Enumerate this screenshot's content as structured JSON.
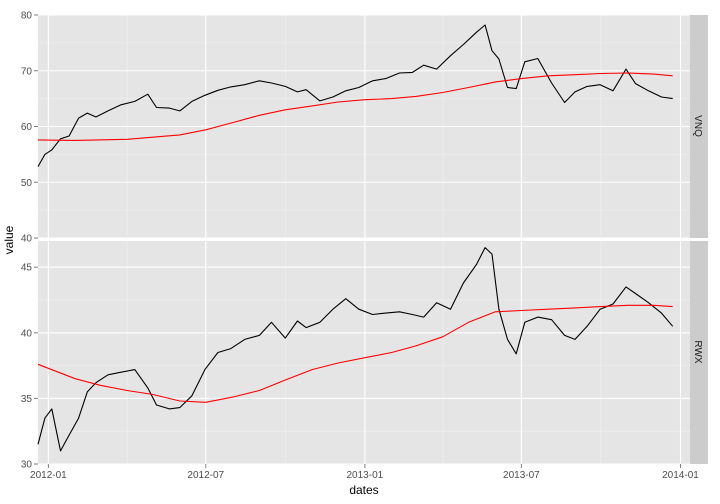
{
  "chart_data": {
    "type": "line",
    "xlabel": "dates",
    "ylabel": "value",
    "x_ticks": [
      "2012-01",
      "2012-07",
      "2013-01",
      "2013-07",
      "2014-01"
    ],
    "colors": {
      "price": "#000000",
      "moving_average": "#ff0000",
      "panel_bg": "#e5e5e5",
      "strip_bg": "#cccccc",
      "grid": "#ffffff"
    },
    "panels": [
      {
        "strip": "VNQ",
        "ylim": [
          40,
          80
        ],
        "y_ticks": [
          "40",
          "50",
          "60",
          "70",
          "80"
        ],
        "series": [
          {
            "role": "price",
            "x": [
              "2011-12-20",
              "2011-12-28",
              "2012-01-05",
              "2012-01-15",
              "2012-01-25",
              "2012-02-05",
              "2012-02-15",
              "2012-02-25",
              "2012-03-10",
              "2012-03-25",
              "2012-04-10",
              "2012-04-25",
              "2012-05-05",
              "2012-05-20",
              "2012-06-01",
              "2012-06-15",
              "2012-06-30",
              "2012-07-15",
              "2012-07-30",
              "2012-08-15",
              "2012-09-01",
              "2012-09-15",
              "2012-10-01",
              "2012-10-15",
              "2012-10-25",
              "2012-11-10",
              "2012-11-25",
              "2012-12-10",
              "2012-12-25",
              "2013-01-10",
              "2013-01-25",
              "2013-02-10",
              "2013-02-25",
              "2013-03-10",
              "2013-03-25",
              "2013-04-10",
              "2013-04-25",
              "2013-05-10",
              "2013-05-20",
              "2013-05-28",
              "2013-06-05",
              "2013-06-15",
              "2013-06-25",
              "2013-07-05",
              "2013-07-20",
              "2013-08-05",
              "2013-08-20",
              "2013-09-01",
              "2013-09-15",
              "2013-09-30",
              "2013-10-15",
              "2013-10-30",
              "2013-11-10",
              "2013-11-25",
              "2013-12-10",
              "2013-12-23"
            ],
            "values": [
              52.8,
              55,
              55.8,
              57.8,
              58.3,
              61.5,
              62.4,
              61.7,
              62.8,
              63.9,
              64.5,
              65.8,
              63.4,
              63.3,
              62.8,
              64.5,
              65.6,
              66.5,
              67.1,
              67.5,
              68.2,
              67.8,
              67.2,
              66.2,
              66.6,
              64.6,
              65.3,
              66.4,
              67,
              68.2,
              68.6,
              69.6,
              69.7,
              71,
              70.3,
              72.7,
              74.7,
              76.9,
              78.2,
              73.6,
              72.1,
              67,
              66.8,
              71.6,
              72.2,
              67.8,
              64.3,
              66.2,
              67.2,
              67.5,
              66.4,
              70.3,
              67.7,
              66.4,
              65.3,
              65
            ]
          },
          {
            "role": "moving_average",
            "x": [
              "2011-12-20",
              "2012-02-01",
              "2012-04-01",
              "2012-06-01",
              "2012-07-01",
              "2012-08-01",
              "2012-09-01",
              "2012-10-01",
              "2012-11-01",
              "2012-12-01",
              "2013-01-01",
              "2013-02-01",
              "2013-03-01",
              "2013-04-01",
              "2013-05-01",
              "2013-06-01",
              "2013-07-01",
              "2013-08-01",
              "2013-09-01",
              "2013-10-01",
              "2013-11-01",
              "2013-12-01",
              "2013-12-23"
            ],
            "values": [
              57.6,
              57.5,
              57.7,
              58.5,
              59.4,
              60.7,
              62,
              63,
              63.7,
              64.4,
              64.8,
              65,
              65.4,
              66.1,
              67,
              68,
              68.6,
              69.1,
              69.3,
              69.5,
              69.6,
              69.4,
              69.1
            ]
          }
        ]
      },
      {
        "strip": "RWX",
        "ylim": [
          30,
          47
        ],
        "y_ticks": [
          "30",
          "35",
          "40",
          "45"
        ],
        "series": [
          {
            "role": "price",
            "x": [
              "2011-12-20",
              "2011-12-28",
              "2012-01-05",
              "2012-01-15",
              "2012-01-25",
              "2012-02-05",
              "2012-02-15",
              "2012-02-25",
              "2012-03-10",
              "2012-03-25",
              "2012-04-10",
              "2012-04-25",
              "2012-05-05",
              "2012-05-20",
              "2012-06-01",
              "2012-06-15",
              "2012-06-30",
              "2012-07-15",
              "2012-07-30",
              "2012-08-15",
              "2012-09-01",
              "2012-09-15",
              "2012-10-01",
              "2012-10-15",
              "2012-10-25",
              "2012-11-10",
              "2012-11-25",
              "2012-12-10",
              "2012-12-25",
              "2013-01-10",
              "2013-01-25",
              "2013-02-10",
              "2013-02-25",
              "2013-03-10",
              "2013-03-25",
              "2013-04-10",
              "2013-04-25",
              "2013-05-10",
              "2013-05-20",
              "2013-05-28",
              "2013-06-05",
              "2013-06-15",
              "2013-06-25",
              "2013-07-05",
              "2013-07-20",
              "2013-08-05",
              "2013-08-20",
              "2013-09-01",
              "2013-09-15",
              "2013-09-30",
              "2013-10-15",
              "2013-10-30",
              "2013-11-10",
              "2013-11-25",
              "2013-12-10",
              "2013-12-23"
            ],
            "values": [
              31.5,
              33.5,
              34.2,
              31,
              32.2,
              33.5,
              35.5,
              36.2,
              36.8,
              37,
              37.2,
              35.8,
              34.5,
              34.2,
              34.3,
              35.2,
              37.2,
              38.5,
              38.8,
              39.5,
              39.8,
              40.8,
              39.6,
              40.9,
              40.4,
              40.8,
              41.8,
              42.6,
              41.8,
              41.4,
              41.5,
              41.6,
              41.4,
              41.2,
              42.3,
              41.8,
              43.8,
              45.2,
              46.5,
              46,
              41.8,
              39.5,
              38.4,
              40.8,
              41.2,
              41,
              39.8,
              39.5,
              40.5,
              41.8,
              42.2,
              43.5,
              43,
              42.3,
              41.5,
              40.5
            ]
          },
          {
            "role": "moving_average",
            "x": [
              "2011-12-20",
              "2012-02-01",
              "2012-03-01",
              "2012-04-01",
              "2012-05-01",
              "2012-06-01",
              "2012-07-01",
              "2012-08-01",
              "2012-09-01",
              "2012-10-01",
              "2012-11-01",
              "2012-12-01",
              "2013-01-01",
              "2013-02-01",
              "2013-03-01",
              "2013-04-01",
              "2013-05-01",
              "2013-06-01",
              "2013-07-01",
              "2013-08-01",
              "2013-09-01",
              "2013-10-01",
              "2013-11-01",
              "2013-12-01",
              "2013-12-23"
            ],
            "values": [
              37.6,
              36.5,
              36,
              35.6,
              35.3,
              34.8,
              34.7,
              35.1,
              35.6,
              36.4,
              37.2,
              37.7,
              38.1,
              38.5,
              39,
              39.7,
              40.8,
              41.6,
              41.7,
              41.8,
              41.9,
              42,
              42.1,
              42.1,
              42
            ]
          }
        ]
      }
    ]
  }
}
